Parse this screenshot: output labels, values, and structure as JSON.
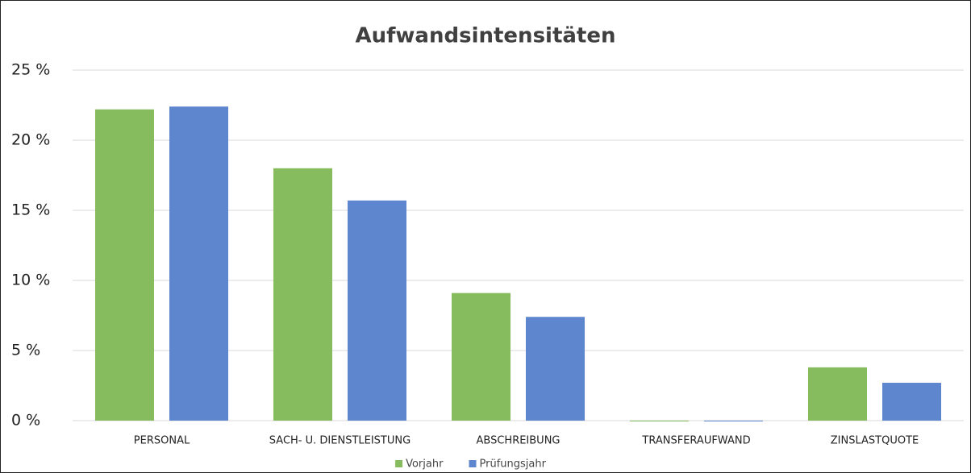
{
  "chart_data": {
    "type": "bar",
    "title": "Aufwandsintensitäten",
    "categories": [
      "PERSONAL",
      "SACH- U. DIENSTLEISTUNG",
      "ABSCHREIBUNG",
      "TRANSFERAUFWAND",
      "ZINSLASTQUOTE"
    ],
    "series": [
      {
        "name": "Vorjahr",
        "color": "#86bc5e",
        "values": [
          22.2,
          18.0,
          9.1,
          0,
          3.8
        ]
      },
      {
        "name": "Prüfungsjahr",
        "color": "#5e86cf",
        "values": [
          22.4,
          15.7,
          7.4,
          0,
          2.7
        ]
      }
    ],
    "ylim": [
      0,
      25
    ],
    "yticks": [
      {
        "value": 0,
        "label": "0 %"
      },
      {
        "value": 5,
        "label": "5 %"
      },
      {
        "value": 10,
        "label": "10 %"
      },
      {
        "value": 15,
        "label": "15 %"
      },
      {
        "value": 20,
        "label": "20 %"
      },
      {
        "value": 25,
        "label": "25 %"
      }
    ],
    "grid": true,
    "legend": "bottom"
  }
}
